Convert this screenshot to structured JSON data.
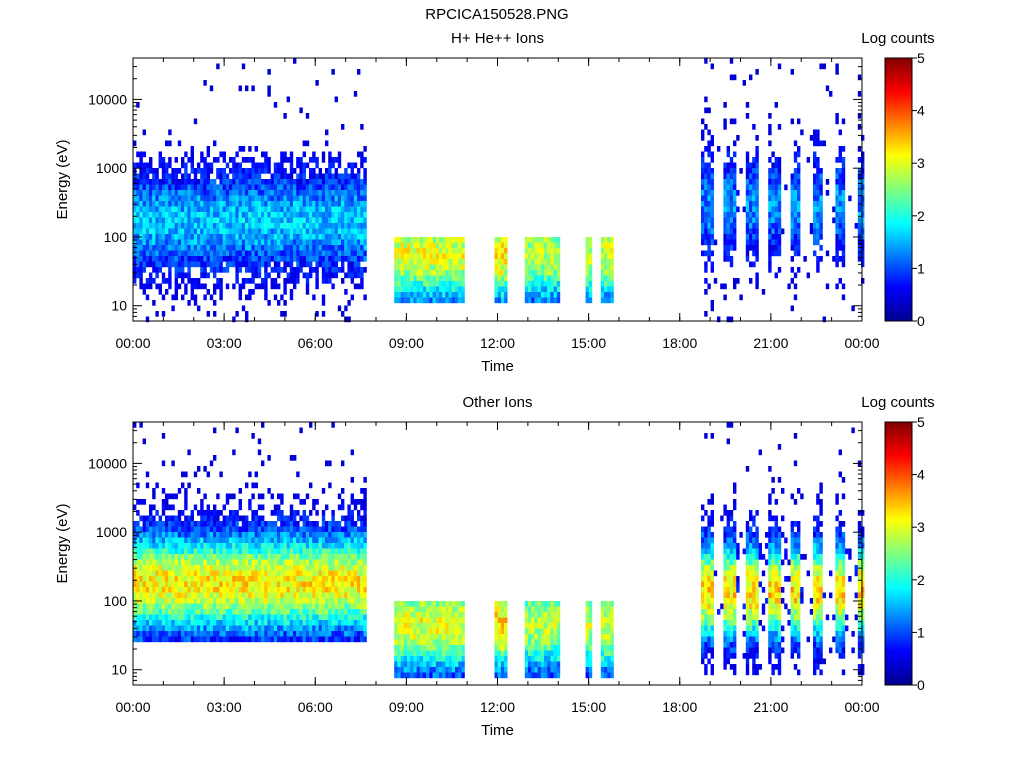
{
  "figure_title": "RPCICA150528.PNG",
  "chart_data": [
    {
      "type": "heatmap",
      "title": "H+ He++ Ions",
      "xlabel": "Time",
      "ylabel": "Energy (eV)",
      "x_tick_labels": [
        "00:00",
        "03:00",
        "06:00",
        "09:00",
        "12:00",
        "15:00",
        "18:00",
        "21:00",
        "00:00"
      ],
      "x_tick_hours": [
        0,
        3,
        6,
        9,
        12,
        15,
        18,
        21,
        24
      ],
      "xlim_hours": [
        0,
        24
      ],
      "yscale": "log",
      "ylim": [
        6,
        40000
      ],
      "y_tick_labels": [
        "10",
        "100",
        "1000",
        "10000"
      ],
      "y_tick_values": [
        10,
        100,
        1000,
        10000
      ],
      "colorbar": {
        "label": "Log counts",
        "range": [
          0,
          5
        ],
        "tick_labels": [
          "0",
          "1",
          "2",
          "3",
          "4",
          "5"
        ]
      },
      "regions": [
        {
          "t": [
            0,
            7.6
          ],
          "e": [
            6,
            40000
          ],
          "intensity": 1.6,
          "peak_energy": 180,
          "sparse_above": 2000,
          "note": "scattered"
        },
        {
          "t": [
            8.6,
            10.9
          ],
          "e": [
            12,
            100
          ],
          "intensity": 3.0,
          "peak_energy": 60
        },
        {
          "t": [
            11.9,
            12.3
          ],
          "e": [
            12,
            100
          ],
          "intensity": 3.2,
          "peak_energy": 60
        },
        {
          "t": [
            12.9,
            14.0
          ],
          "e": [
            12,
            100
          ],
          "intensity": 2.8,
          "peak_energy": 60
        },
        {
          "t": [
            14.9,
            15.1
          ],
          "e": [
            12,
            100
          ],
          "intensity": 2.8,
          "peak_energy": 60
        },
        {
          "t": [
            15.4,
            15.8
          ],
          "e": [
            12,
            100
          ],
          "intensity": 2.9,
          "peak_energy": 60
        },
        {
          "t": [
            18.7,
            24
          ],
          "e": [
            6,
            40000
          ],
          "intensity": 1.3,
          "peak_energy": 300,
          "striped": true
        }
      ]
    },
    {
      "type": "heatmap",
      "title": "Other Ions",
      "xlabel": "Time",
      "ylabel": "Energy (eV)",
      "x_tick_labels": [
        "00:00",
        "03:00",
        "06:00",
        "09:00",
        "12:00",
        "15:00",
        "18:00",
        "21:00",
        "00:00"
      ],
      "x_tick_hours": [
        0,
        3,
        6,
        9,
        12,
        15,
        18,
        21,
        24
      ],
      "xlim_hours": [
        0,
        24
      ],
      "yscale": "log",
      "ylim": [
        6,
        40000
      ],
      "y_tick_labels": [
        "10",
        "100",
        "1000",
        "10000"
      ],
      "y_tick_values": [
        10,
        100,
        1000,
        10000
      ],
      "colorbar": {
        "label": "Log counts",
        "range": [
          0,
          5
        ],
        "tick_labels": [
          "0",
          "1",
          "2",
          "3",
          "4",
          "5"
        ]
      },
      "regions": [
        {
          "t": [
            0,
            7.6
          ],
          "e": [
            30,
            40000
          ],
          "intensity": 3.2,
          "peak_energy": 200
        },
        {
          "t": [
            8.6,
            10.9
          ],
          "e": [
            8,
            100
          ],
          "intensity": 3.0,
          "peak_energy": 50
        },
        {
          "t": [
            11.9,
            12.3
          ],
          "e": [
            8,
            100
          ],
          "intensity": 3.3,
          "peak_energy": 50
        },
        {
          "t": [
            12.9,
            14.0
          ],
          "e": [
            8,
            100
          ],
          "intensity": 2.8,
          "peak_energy": 50
        },
        {
          "t": [
            14.9,
            15.1
          ],
          "e": [
            8,
            100
          ],
          "intensity": 2.8,
          "peak_energy": 50
        },
        {
          "t": [
            15.4,
            15.8
          ],
          "e": [
            8,
            100
          ],
          "intensity": 2.9,
          "peak_energy": 50
        },
        {
          "t": [
            18.7,
            24
          ],
          "e": [
            10,
            40000
          ],
          "intensity": 3.3,
          "peak_energy": 150,
          "striped": true
        }
      ]
    }
  ]
}
